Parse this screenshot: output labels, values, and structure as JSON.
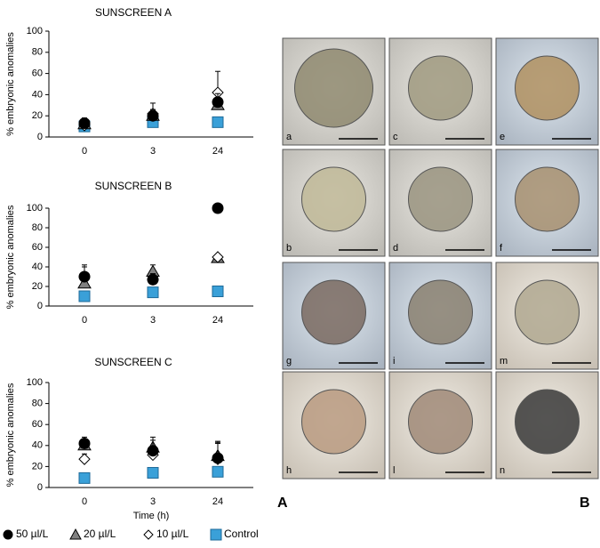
{
  "chart_data": [
    {
      "type": "scatter",
      "title": "SUNSCREEN A",
      "ylabel": "% embryonic anomalies",
      "categories": [
        "0",
        "3",
        "24"
      ],
      "ylim": [
        0,
        100
      ],
      "yticks": [
        0,
        20,
        40,
        60,
        80,
        100
      ],
      "series": [
        {
          "color": "#000000",
          "marker": "circle",
          "values": [
            13,
            20,
            33
          ],
          "errors": [
            5,
            6,
            8
          ]
        },
        {
          "color": "#808080",
          "marker": "triangle",
          "values": [
            12,
            20,
            30
          ],
          "errors": [
            4,
            5,
            6
          ]
        },
        {
          "color": "#ffffff",
          "marker": "diamond",
          "values": [
            11,
            22,
            42
          ],
          "errors": [
            5,
            10,
            20
          ]
        },
        {
          "color": "#3aa0d8",
          "marker": "square",
          "values": [
            10,
            14,
            14
          ],
          "errors": [
            0,
            0,
            0
          ]
        }
      ]
    },
    {
      "type": "scatter",
      "title": "SUNSCREEN B",
      "ylabel": "% embryonic anomalies",
      "categories": [
        "0",
        "3",
        "24"
      ],
      "ylim": [
        0,
        100
      ],
      "yticks": [
        0,
        20,
        40,
        60,
        80,
        100
      ],
      "series": [
        {
          "color": "#000000",
          "marker": "circle",
          "values": [
            30,
            27,
            100
          ],
          "errors": [
            10,
            6,
            0
          ]
        },
        {
          "color": "#808080",
          "marker": "triangle",
          "values": [
            23,
            35,
            49
          ],
          "errors": [
            8,
            7,
            0
          ]
        },
        {
          "color": "#ffffff",
          "marker": "diamond",
          "values": [
            30,
            27,
            50
          ],
          "errors": [
            12,
            6,
            0
          ]
        },
        {
          "color": "#3aa0d8",
          "marker": "square",
          "values": [
            10,
            14,
            15
          ],
          "errors": [
            0,
            0,
            0
          ]
        }
      ]
    },
    {
      "type": "scatter",
      "title": "SUNSCREEN C",
      "ylabel": "% embryonic anomalies",
      "xlabel": "Time (h)",
      "categories": [
        "0",
        "3",
        "24"
      ],
      "ylim": [
        0,
        100
      ],
      "yticks": [
        0,
        20,
        40,
        60,
        80,
        100
      ],
      "series": [
        {
          "color": "#000000",
          "marker": "circle",
          "values": [
            42,
            35,
            28
          ],
          "errors": [
            6,
            10,
            14
          ]
        },
        {
          "color": "#808080",
          "marker": "triangle",
          "values": [
            40,
            38,
            30
          ],
          "errors": [
            6,
            10,
            14
          ]
        },
        {
          "color": "#ffffff",
          "marker": "diamond",
          "values": [
            27,
            31,
            27
          ],
          "errors": [
            5,
            8,
            16
          ]
        },
        {
          "color": "#3aa0d8",
          "marker": "square",
          "values": [
            9,
            14,
            15
          ],
          "errors": [
            0,
            0,
            0
          ]
        }
      ]
    }
  ],
  "legend": [
    "50 µl/L",
    "20 µl/L",
    "10 µl/L",
    "Control"
  ],
  "panel_letters": [
    "A",
    "B"
  ],
  "micrographs": [
    "a",
    "c",
    "e",
    "b",
    "d",
    "f",
    "g",
    "i",
    "m",
    "h",
    "l",
    "n"
  ]
}
